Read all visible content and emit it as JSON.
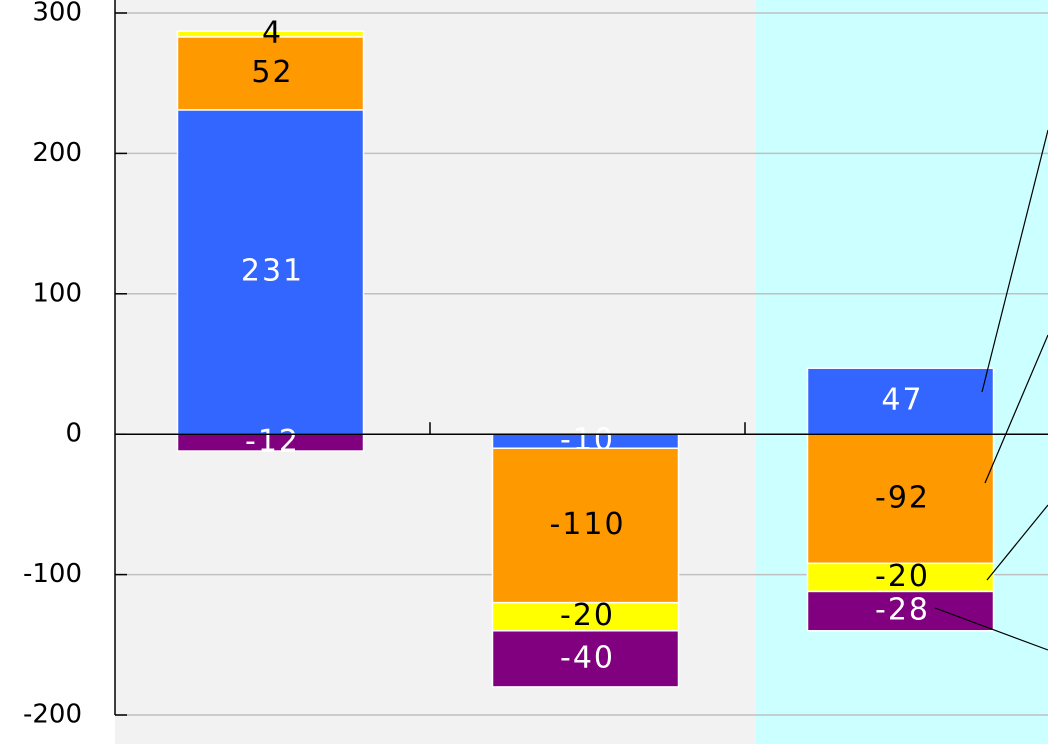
{
  "chart_data": {
    "type": "stacked_bar",
    "categories": [
      null,
      null,
      null
    ],
    "series": [
      {
        "color": "#3366ff",
        "values": [
          231,
          -10,
          47
        ]
      },
      {
        "color": "#ff9900",
        "values": [
          52,
          -110,
          -92
        ]
      },
      {
        "color": "#ffff00",
        "values": [
          4,
          -20,
          -20
        ]
      },
      {
        "color": "#800080",
        "values": [
          -12,
          -40,
          -28
        ]
      }
    ],
    "ylim": [
      -200,
      300
    ],
    "yticks": [
      -200,
      -100,
      0,
      100,
      200,
      300
    ],
    "grid": true,
    "highlight_category": 2
  }
}
